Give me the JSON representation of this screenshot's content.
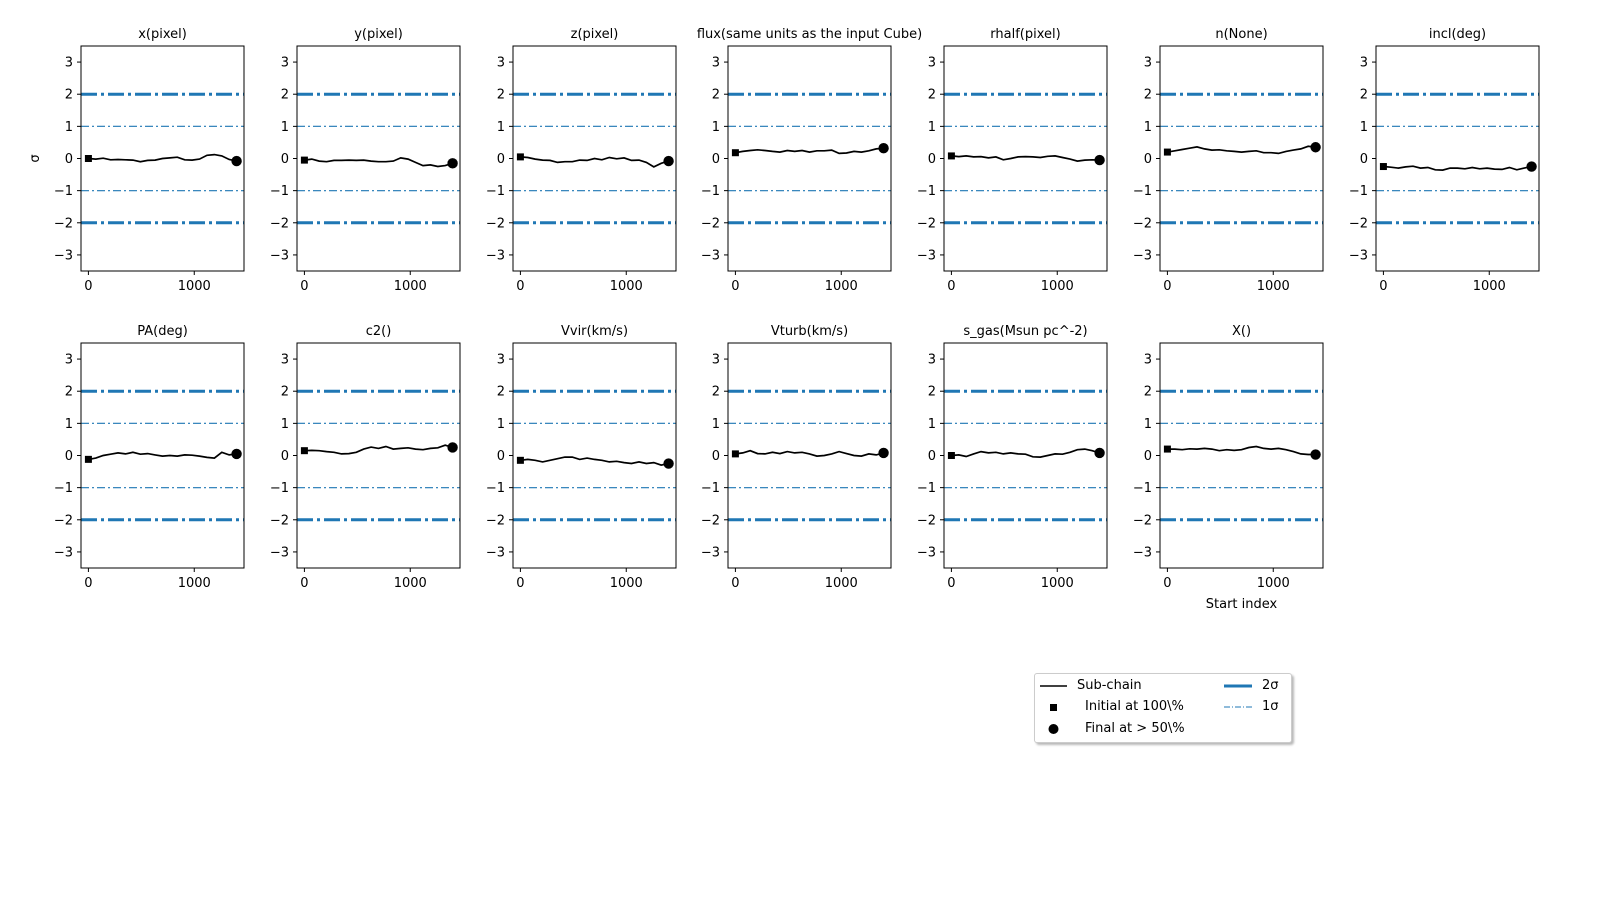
{
  "chart_data": {
    "type": "line",
    "ylabel": "σ",
    "xlabel": "Start index",
    "xlim": [
      -70,
      1470
    ],
    "ylim": [
      -3.5,
      3.5
    ],
    "xticks": [
      0,
      1000
    ],
    "yticks": [
      -3,
      -2,
      -1,
      0,
      1,
      2,
      3
    ],
    "reference_lines": [
      {
        "label": "2σ",
        "values": [
          2,
          -2
        ],
        "style": "dash-dot",
        "weight": "thick",
        "color": "#1f77b4"
      },
      {
        "label": "1σ",
        "values": [
          1,
          -1
        ],
        "style": "dash-dot",
        "weight": "thin",
        "color": "#1f77b4"
      }
    ],
    "series_color": "#000000",
    "x": [
      0,
      70,
      140,
      210,
      280,
      350,
      420,
      490,
      560,
      630,
      700,
      770,
      840,
      910,
      980,
      1050,
      1120,
      1190,
      1260,
      1330,
      1400
    ],
    "panels": [
      {
        "title": "x(pixel)",
        "initial": 0.0,
        "final": -0.08,
        "values": [
          0.0,
          -0.02,
          0.01,
          -0.04,
          -0.03,
          -0.04,
          -0.05,
          -0.1,
          -0.06,
          -0.05,
          0.0,
          0.02,
          0.04,
          -0.04,
          -0.05,
          -0.02,
          0.1,
          0.12,
          0.08,
          -0.03,
          -0.08
        ]
      },
      {
        "title": "y(pixel)",
        "initial": -0.05,
        "final": -0.15,
        "values": [
          -0.05,
          -0.02,
          -0.08,
          -0.1,
          -0.06,
          -0.06,
          -0.05,
          -0.06,
          -0.05,
          -0.08,
          -0.1,
          -0.1,
          -0.08,
          0.02,
          -0.02,
          -0.12,
          -0.22,
          -0.2,
          -0.25,
          -0.22,
          -0.15
        ]
      },
      {
        "title": "z(pixel)",
        "initial": 0.05,
        "final": -0.08,
        "values": [
          0.05,
          0.03,
          -0.02,
          -0.05,
          -0.06,
          -0.12,
          -0.1,
          -0.1,
          -0.05,
          -0.06,
          0.0,
          -0.04,
          0.03,
          -0.01,
          0.02,
          -0.06,
          -0.05,
          -0.12,
          -0.26,
          -0.15,
          -0.08
        ]
      },
      {
        "title": "flux(same units as the input Cube)",
        "initial": 0.18,
        "final": 0.32,
        "values": [
          0.18,
          0.22,
          0.25,
          0.27,
          0.25,
          0.22,
          0.2,
          0.25,
          0.22,
          0.25,
          0.2,
          0.24,
          0.24,
          0.26,
          0.16,
          0.17,
          0.22,
          0.2,
          0.24,
          0.3,
          0.32
        ]
      },
      {
        "title": "rhalf(pixel)",
        "initial": 0.08,
        "final": -0.05,
        "values": [
          0.08,
          0.06,
          0.08,
          0.05,
          0.06,
          0.02,
          0.05,
          -0.04,
          0.0,
          0.05,
          0.06,
          0.05,
          0.03,
          0.07,
          0.08,
          0.03,
          -0.02,
          -0.08,
          -0.05,
          -0.04,
          -0.05
        ]
      },
      {
        "title": "n(None)",
        "initial": 0.2,
        "final": 0.35,
        "values": [
          0.2,
          0.24,
          0.28,
          0.32,
          0.36,
          0.3,
          0.26,
          0.27,
          0.24,
          0.22,
          0.2,
          0.22,
          0.24,
          0.18,
          0.18,
          0.16,
          0.22,
          0.26,
          0.3,
          0.38,
          0.35
        ]
      },
      {
        "title": "incl(deg)",
        "initial": -0.25,
        "final": -0.25,
        "values": [
          -0.25,
          -0.27,
          -0.3,
          -0.26,
          -0.24,
          -0.3,
          -0.28,
          -0.35,
          -0.36,
          -0.3,
          -0.3,
          -0.32,
          -0.28,
          -0.32,
          -0.3,
          -0.33,
          -0.34,
          -0.28,
          -0.35,
          -0.3,
          -0.25
        ]
      },
      {
        "title": "PA(deg)",
        "initial": -0.12,
        "final": 0.05,
        "values": [
          -0.12,
          -0.08,
          0.0,
          0.04,
          0.08,
          0.05,
          0.1,
          0.04,
          0.06,
          0.02,
          -0.02,
          0.0,
          -0.02,
          0.02,
          0.01,
          -0.02,
          -0.06,
          -0.08,
          0.1,
          0.02,
          0.05
        ]
      },
      {
        "title": "c2()",
        "initial": 0.15,
        "final": 0.25,
        "values": [
          0.15,
          0.16,
          0.15,
          0.12,
          0.1,
          0.05,
          0.06,
          0.1,
          0.2,
          0.26,
          0.22,
          0.28,
          0.2,
          0.22,
          0.24,
          0.2,
          0.18,
          0.22,
          0.24,
          0.32,
          0.25
        ]
      },
      {
        "title": "Vvir(km/s)",
        "initial": -0.15,
        "final": -0.25,
        "values": [
          -0.15,
          -0.12,
          -0.15,
          -0.2,
          -0.15,
          -0.1,
          -0.05,
          -0.05,
          -0.12,
          -0.08,
          -0.12,
          -0.15,
          -0.2,
          -0.18,
          -0.22,
          -0.25,
          -0.2,
          -0.25,
          -0.22,
          -0.3,
          -0.25
        ]
      },
      {
        "title": "Vturb(km/s)",
        "initial": 0.05,
        "final": 0.08,
        "values": [
          0.05,
          0.08,
          0.15,
          0.06,
          0.05,
          0.1,
          0.06,
          0.12,
          0.08,
          0.1,
          0.05,
          -0.02,
          0.0,
          0.05,
          0.12,
          0.06,
          0.0,
          -0.02,
          0.05,
          0.02,
          0.08
        ]
      },
      {
        "title": "s_gas(Msun pc^-2)",
        "initial": 0.0,
        "final": 0.08,
        "values": [
          0.0,
          0.02,
          -0.03,
          0.05,
          0.12,
          0.08,
          0.1,
          0.05,
          0.08,
          0.05,
          0.04,
          -0.04,
          -0.05,
          0.0,
          0.05,
          0.04,
          0.1,
          0.18,
          0.2,
          0.15,
          0.08
        ]
      },
      {
        "title": "X()",
        "initial": 0.2,
        "final": 0.03,
        "values": [
          0.2,
          0.2,
          0.18,
          0.21,
          0.2,
          0.22,
          0.2,
          0.15,
          0.18,
          0.16,
          0.18,
          0.25,
          0.28,
          0.22,
          0.2,
          0.22,
          0.18,
          0.12,
          0.05,
          0.03,
          0.03
        ]
      }
    ]
  },
  "legend": {
    "items": [
      {
        "label": "Sub-chain",
        "symbol": "line"
      },
      {
        "label": "Initial at 100\\%",
        "symbol": "square"
      },
      {
        "label": "Final at $>50$\\%",
        "symbol": "circle",
        "display": "Final at  > 50\\%"
      },
      {
        "label": "2σ",
        "symbol": "thick-dashdot"
      },
      {
        "label": "1σ",
        "symbol": "thin-dashdot"
      }
    ]
  },
  "colors": {
    "reference": "#1f77b4",
    "series": "#000000",
    "frame": "#000000"
  }
}
